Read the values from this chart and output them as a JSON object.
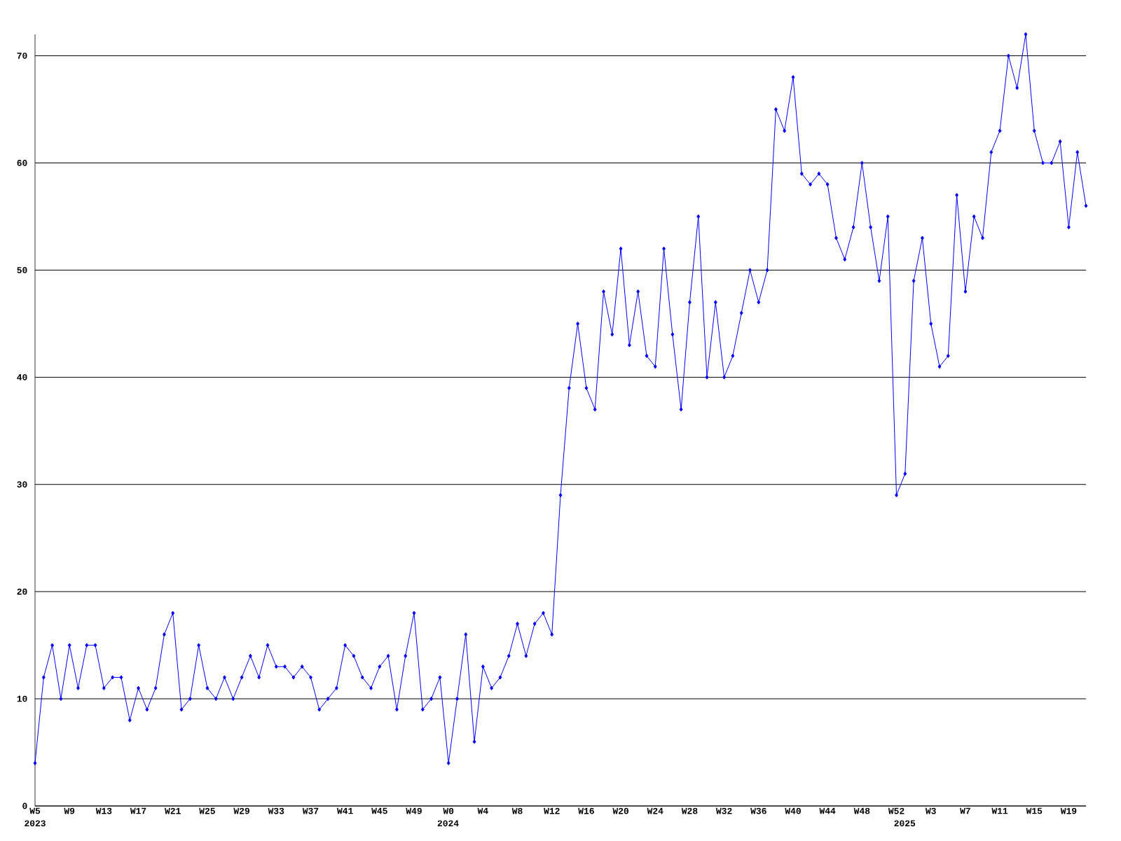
{
  "chart_data": {
    "type": "line",
    "categories": [
      "W5",
      null,
      null,
      null,
      "W9",
      null,
      null,
      null,
      "W13",
      null,
      null,
      null,
      "W17",
      null,
      null,
      null,
      "W21",
      null,
      null,
      null,
      "W25",
      null,
      null,
      null,
      "W29",
      null,
      null,
      null,
      "W33",
      null,
      null,
      null,
      "W37",
      null,
      null,
      null,
      "W41",
      null,
      null,
      null,
      "W45",
      null,
      null,
      null,
      "W49",
      null,
      null,
      null,
      "W0",
      null,
      null,
      null,
      "W4",
      null,
      null,
      null,
      "W8",
      null,
      null,
      null,
      "W12",
      null,
      null,
      null,
      "W16",
      null,
      null,
      null,
      "W20",
      null,
      null,
      null,
      "W24",
      null,
      null,
      null,
      "W28",
      null,
      null,
      null,
      "W32",
      null,
      null,
      null,
      "W36",
      null,
      null,
      null,
      "W40",
      null,
      null,
      null,
      "W44",
      null,
      null,
      null,
      "W48",
      null,
      null,
      null,
      "W52",
      null,
      null,
      null,
      "W3",
      null,
      null,
      null,
      "W7",
      null,
      null,
      null,
      "W11",
      null,
      null,
      null,
      "W15",
      null,
      null,
      null,
      "W19",
      null,
      null
    ],
    "values": [
      4,
      12,
      15,
      10,
      15,
      11,
      15,
      15,
      11,
      12,
      12,
      8,
      11,
      9,
      11,
      16,
      18,
      9,
      10,
      15,
      11,
      10,
      12,
      10,
      12,
      14,
      12,
      15,
      13,
      13,
      12,
      13,
      12,
      9,
      10,
      11,
      15,
      14,
      12,
      11,
      13,
      14,
      9,
      14,
      18,
      9,
      10,
      12,
      4,
      10,
      16,
      6,
      13,
      11,
      12,
      14,
      17,
      14,
      17,
      18,
      16,
      29,
      39,
      45,
      39,
      37,
      48,
      44,
      52,
      43,
      48,
      42,
      41,
      52,
      44,
      37,
      47,
      55,
      40,
      47,
      40,
      42,
      46,
      50,
      47,
      50,
      65,
      63,
      68,
      59,
      58,
      59,
      58,
      53,
      51,
      54,
      60,
      54,
      49,
      55,
      29,
      31,
      49,
      53,
      45,
      41,
      42,
      57,
      48,
      55,
      53,
      61,
      63,
      70,
      67,
      72,
      63,
      60,
      60,
      62,
      54,
      61,
      56
    ],
    "color": "#0000ff",
    "marker": "diamond",
    "line_style": "solid",
    "grid": "y",
    "ylim": [
      0,
      72
    ],
    "yticks": [
      0,
      10,
      20,
      30,
      40,
      50,
      60,
      70
    ],
    "annotations": [
      "2023",
      "2024",
      "2025"
    ]
  }
}
